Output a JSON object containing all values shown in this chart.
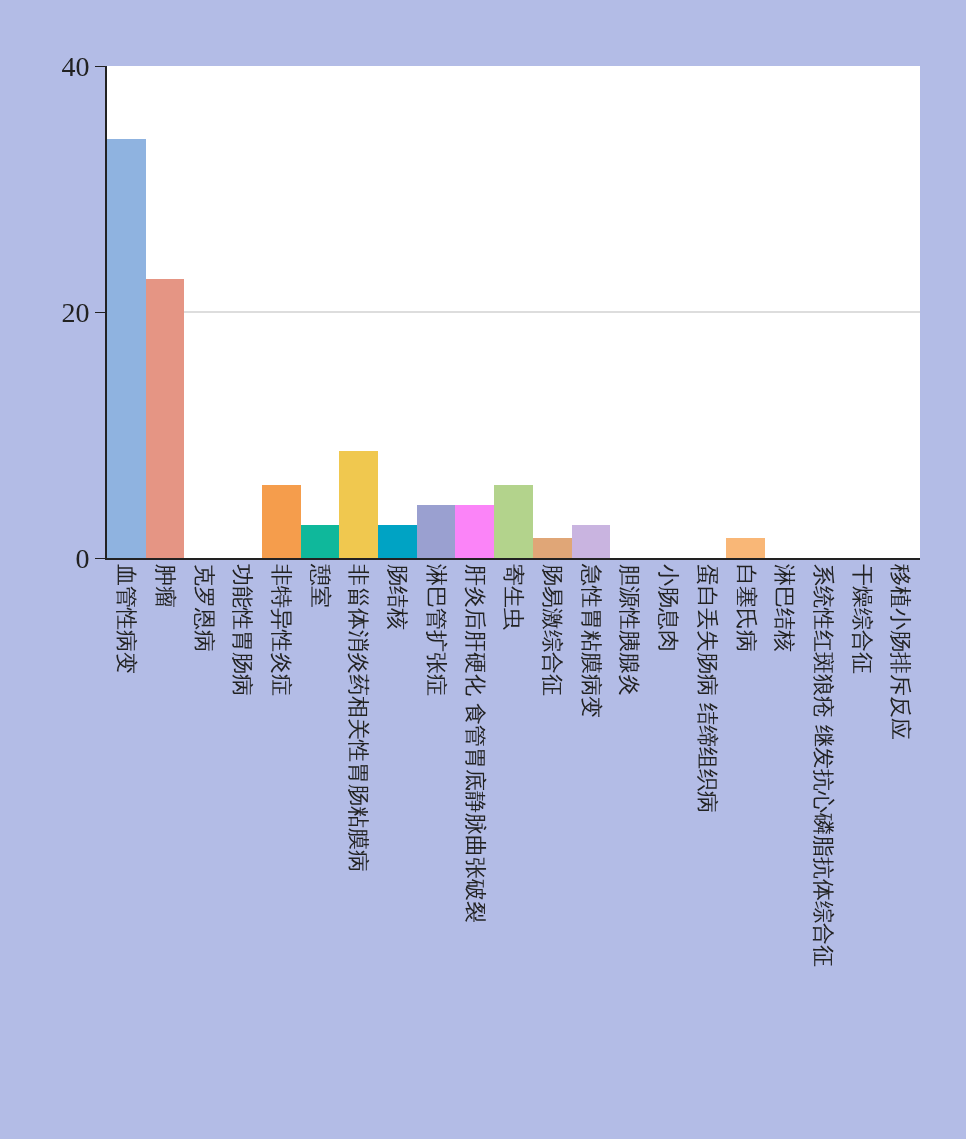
{
  "chart_data": {
    "type": "bar",
    "categories": [
      "血管性病变",
      "肿瘤",
      "克罗恩病",
      "功能性胃肠病",
      "非特异性炎症",
      "憩室",
      "非甾体消炎药相关性胃肠粘膜病",
      "肠结核",
      "淋巴管扩张症",
      "肝炎后肝硬化 食管胃底静脉曲张破裂",
      "寄生虫",
      "肠易激综合征",
      "急性胃粘膜病变",
      "胆源性胰腺炎",
      "小肠息肉",
      "蛋白丢失肠病 结缔组织病",
      "白塞氏病",
      "淋巴结核",
      "系统性红斑狼疮 继发抗心磷脂抗体综合征",
      "干燥综合征",
      "移植小肠排斥反应"
    ],
    "values": [
      34.1,
      22.7,
      0,
      0,
      5.9,
      2.7,
      8.7,
      2.7,
      4.3,
      4.3,
      5.9,
      1.6,
      2.7,
      0,
      0,
      0,
      1.6,
      0,
      0,
      0,
      0
    ],
    "colors": [
      "#8fb3e0",
      "#e59584",
      null,
      null,
      "#f59d4c",
      "#0fb89b",
      "#f0c84f",
      "#00a3c4",
      "#9aa0d0",
      "#fb84f8",
      "#b3d38c",
      "#e0a677",
      "#c9b4e0",
      null,
      null,
      null,
      "#f9b777",
      null,
      null,
      null,
      null
    ],
    "ylim": [
      0,
      40
    ],
    "yticks": [
      0,
      20,
      40
    ],
    "grid": "y"
  }
}
